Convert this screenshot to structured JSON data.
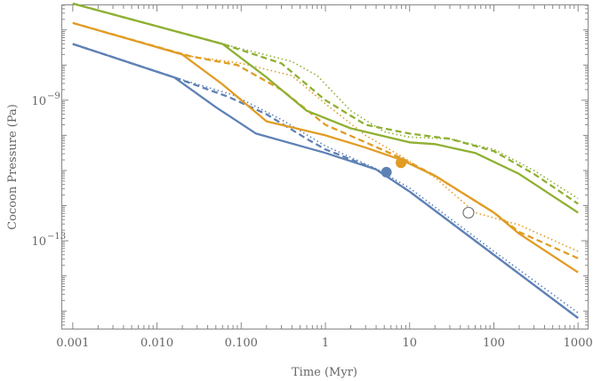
{
  "chart_data": {
    "type": "line",
    "title": "",
    "xlabel": "Time (Myr)",
    "ylabel": "Cocoon Pressure (Pa)",
    "x_scale": "log",
    "y_scale": "log",
    "xlim": [
      0.00075,
      1300
    ],
    "ylim_log10": [
      -15.5,
      -6.3
    ],
    "x_ticks": [
      {
        "value": 0.001,
        "label": "0.001"
      },
      {
        "value": 0.01,
        "label": "0.010"
      },
      {
        "value": 0.1,
        "label": "0.100"
      },
      {
        "value": 1,
        "label": "1"
      },
      {
        "value": 10,
        "label": "10"
      },
      {
        "value": 100,
        "label": "100"
      },
      {
        "value": 1000,
        "label": "1000"
      }
    ],
    "y_ticks": [
      {
        "log10": -9,
        "base": "10",
        "exponent": "−9"
      },
      {
        "log10": -13,
        "base": "10",
        "exponent": "−13"
      }
    ],
    "colors": {
      "blue": "#5e81b5",
      "orange": "#e19c24",
      "green": "#8fb032",
      "frame": "#888888",
      "marker_open": "#777777"
    },
    "series": [
      {
        "name": "blue-solid",
        "color": "blue",
        "style": "solid",
        "points": [
          [
            0.001,
            -7.4
          ],
          [
            0.016,
            -8.35
          ],
          [
            0.05,
            -9.2
          ],
          [
            0.15,
            -9.95
          ],
          [
            1,
            -10.5
          ],
          [
            4,
            -10.97
          ],
          [
            10,
            -11.6
          ],
          [
            100,
            -13.4
          ],
          [
            1000,
            -15.2
          ]
        ]
      },
      {
        "name": "blue-dashed",
        "color": "blue",
        "style": "dashed",
        "points": [
          [
            0.001,
            -7.4
          ],
          [
            0.016,
            -8.35
          ],
          [
            0.07,
            -8.9
          ],
          [
            0.2,
            -9.4
          ],
          [
            0.6,
            -10.1
          ],
          [
            1,
            -10.4
          ],
          [
            4,
            -10.97
          ],
          [
            10,
            -11.6
          ],
          [
            100,
            -13.4
          ],
          [
            1000,
            -15.2
          ]
        ]
      },
      {
        "name": "blue-dotted",
        "color": "blue",
        "style": "dotted",
        "points": [
          [
            0.001,
            -7.4
          ],
          [
            0.016,
            -8.35
          ],
          [
            0.08,
            -8.85
          ],
          [
            0.3,
            -9.55
          ],
          [
            1,
            -10.3
          ],
          [
            4,
            -10.95
          ],
          [
            10,
            -11.5
          ],
          [
            100,
            -13.3
          ],
          [
            1000,
            -15.05
          ]
        ]
      },
      {
        "name": "orange-solid",
        "color": "orange",
        "style": "solid",
        "points": [
          [
            0.001,
            -6.8
          ],
          [
            0.02,
            -7.7
          ],
          [
            0.06,
            -8.55
          ],
          [
            0.2,
            -9.6
          ],
          [
            1,
            -10.0
          ],
          [
            3,
            -10.35
          ],
          [
            8,
            -10.7
          ],
          [
            20,
            -11.15
          ],
          [
            100,
            -12.2
          ],
          [
            200,
            -12.8
          ],
          [
            1000,
            -13.9
          ]
        ]
      },
      {
        "name": "orange-dashed",
        "color": "orange",
        "style": "dashed",
        "points": [
          [
            0.001,
            -6.8
          ],
          [
            0.025,
            -7.75
          ],
          [
            0.09,
            -8.0
          ],
          [
            0.3,
            -8.7
          ],
          [
            1,
            -9.7
          ],
          [
            3,
            -10.2
          ],
          [
            8,
            -10.65
          ],
          [
            20,
            -11.15
          ],
          [
            100,
            -12.2
          ],
          [
            200,
            -12.75
          ],
          [
            1000,
            -13.5
          ]
        ]
      },
      {
        "name": "orange-dotted",
        "color": "orange",
        "style": "dotted",
        "points": [
          [
            0.001,
            -6.8
          ],
          [
            0.025,
            -7.75
          ],
          [
            0.1,
            -7.95
          ],
          [
            0.4,
            -8.3
          ],
          [
            1,
            -9.1
          ],
          [
            3,
            -10.0
          ],
          [
            8,
            -10.6
          ],
          [
            20,
            -11.2
          ],
          [
            60,
            -12.2
          ],
          [
            200,
            -12.55
          ],
          [
            1000,
            -13.3
          ]
        ]
      },
      {
        "name": "green-solid",
        "color": "green",
        "style": "solid",
        "points": [
          [
            0.001,
            -6.25
          ],
          [
            0.06,
            -7.4
          ],
          [
            0.2,
            -8.35
          ],
          [
            0.6,
            -9.3
          ],
          [
            2,
            -9.8
          ],
          [
            10,
            -10.2
          ],
          [
            20,
            -10.25
          ],
          [
            60,
            -10.5
          ],
          [
            200,
            -11.1
          ],
          [
            1000,
            -12.2
          ]
        ]
      },
      {
        "name": "green-dashed",
        "color": "green",
        "style": "dashed",
        "points": [
          [
            0.001,
            -6.25
          ],
          [
            0.06,
            -7.4
          ],
          [
            0.3,
            -7.95
          ],
          [
            1,
            -9.0
          ],
          [
            3,
            -9.7
          ],
          [
            10,
            -9.95
          ],
          [
            30,
            -10.1
          ],
          [
            100,
            -10.45
          ],
          [
            300,
            -11.1
          ],
          [
            1000,
            -11.95
          ]
        ]
      },
      {
        "name": "green-dotted",
        "color": "green",
        "style": "dotted",
        "points": [
          [
            0.001,
            -6.25
          ],
          [
            0.06,
            -7.4
          ],
          [
            0.4,
            -7.9
          ],
          [
            0.8,
            -8.3
          ],
          [
            2,
            -9.3
          ],
          [
            5,
            -9.9
          ],
          [
            10,
            -10.05
          ],
          [
            30,
            -10.1
          ],
          [
            100,
            -10.4
          ],
          [
            300,
            -11.0
          ],
          [
            1000,
            -11.8
          ]
        ]
      }
    ],
    "markers": [
      {
        "name": "blue-filled-marker",
        "x": 5.3,
        "y_log10": -11.05,
        "color": "blue",
        "filled": true
      },
      {
        "name": "orange-filled-marker",
        "x": 7.9,
        "y_log10": -10.78,
        "color": "orange",
        "filled": true
      },
      {
        "name": "open-marker",
        "x": 50,
        "y_log10": -12.2,
        "color": "marker_open",
        "filled": false
      }
    ]
  }
}
